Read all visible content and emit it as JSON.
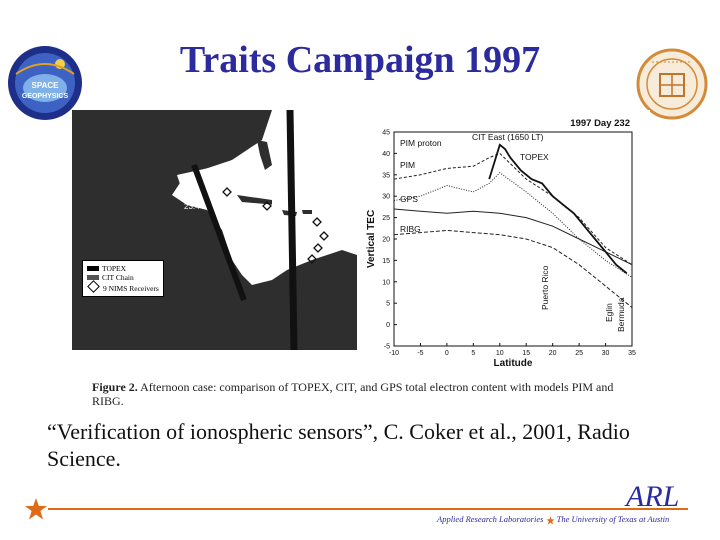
{
  "slide": {
    "title": "Traits Campaign 1997",
    "citation": "“Verification of ionospheric sensors”, C. Coker et al., 2001, Radio Science."
  },
  "figure": {
    "caption_label": "Figure 2.",
    "caption_text": "Afternoon case: comparison of TOPEX, CIT, and GPS total electron content with models PIM and RIBG.",
    "map": {
      "legend": [
        "TOPEX",
        "CIT Chain",
        "9 NIMS Receivers"
      ],
      "label_time": "23:44"
    },
    "chart_data": {
      "type": "line",
      "title": "1997 Day 232",
      "xlabel": "Latitude",
      "ylabel": "Vertical TEC",
      "xlim": [
        -10,
        35
      ],
      "ylim": [
        -5,
        45
      ],
      "x_ticks": [
        "-10",
        "-5",
        "0",
        "5",
        "10",
        "15",
        "20",
        "25",
        "30",
        "35"
      ],
      "y_ticks": [
        "-5",
        "0",
        "5",
        "10",
        "15",
        "20",
        "25",
        "30",
        "35",
        "40",
        "45"
      ],
      "annotations": [
        "PIM proton",
        "CIT East (1650 LT)",
        "TOPEX",
        "PIM",
        "GPS",
        "RIBG",
        "Puerto Rico",
        "Eglin",
        "Bermuda"
      ],
      "series": [
        {
          "name": "PIM proton",
          "x": [
            -10,
            -5,
            0,
            5,
            8,
            10,
            15,
            20,
            25,
            30,
            35
          ],
          "y": [
            34,
            35,
            36.5,
            37,
            39,
            40,
            34,
            30,
            25,
            18,
            14
          ]
        },
        {
          "name": "PIM",
          "x": [
            -10,
            -5,
            0,
            5,
            8,
            10,
            15,
            20,
            25,
            30,
            35
          ],
          "y": [
            29,
            30,
            32.5,
            31,
            33,
            35.5,
            31,
            26,
            20,
            15,
            11
          ]
        },
        {
          "name": "GPS",
          "x": [
            -10,
            -5,
            0,
            5,
            10,
            15,
            20,
            25,
            30,
            35
          ],
          "y": [
            27,
            26.5,
            26,
            26.5,
            26,
            25,
            23,
            20,
            17,
            14
          ]
        },
        {
          "name": "RIBG",
          "x": [
            -10,
            -5,
            0,
            5,
            10,
            15,
            20,
            25,
            30,
            35
          ],
          "y": [
            21,
            21.5,
            22,
            21.5,
            21,
            20,
            18,
            14,
            9,
            4
          ]
        },
        {
          "name": "TOPEX",
          "x": [
            8,
            9,
            10,
            11,
            12,
            14,
            16,
            18,
            20,
            22,
            24,
            26,
            28,
            30,
            32,
            34
          ],
          "y": [
            34,
            38,
            42,
            41,
            39,
            36,
            34,
            33,
            30,
            28,
            26,
            23,
            20,
            17,
            14,
            12
          ]
        }
      ]
    }
  },
  "footer": {
    "logo_text": "ARL",
    "org_left": "Applied Research Laboratories",
    "org_right": "The University of Texas at Austin"
  },
  "colors": {
    "title": "#2b2b9e",
    "rule": "#e06a16",
    "star": "#e06a16"
  }
}
